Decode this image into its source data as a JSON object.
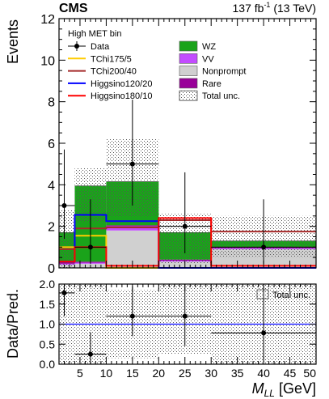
{
  "chart_data": [
    {
      "type": "bar",
      "stacked": true,
      "experiment": "CMS",
      "lumi_label": "137 fb",
      "lumi_sup": "-1",
      "lumi_energy": " (13 TeV)",
      "title": "High MET bin",
      "ylabel": "Events",
      "xlim": [
        1,
        50
      ],
      "ylim": [
        0,
        12
      ],
      "yticks": [
        0,
        2,
        4,
        6,
        8,
        10,
        12
      ],
      "bins": [
        [
          1,
          4
        ],
        [
          4,
          10
        ],
        [
          10,
          20
        ],
        [
          20,
          30
        ],
        [
          30,
          50
        ]
      ],
      "stack": [
        {
          "name": "Nonprompt",
          "color": "#d0d0d0",
          "values": [
            0.15,
            0.2,
            1.8,
            0.3,
            0.9
          ]
        },
        {
          "name": "VV",
          "color": "#c34cff",
          "values": [
            0.05,
            0.05,
            0.2,
            0.05,
            0.05
          ]
        },
        {
          "name": "Rare",
          "color": "#990099",
          "values": [
            0.1,
            0.05,
            0.05,
            0.05,
            0.05
          ]
        },
        {
          "name": "WZ",
          "color": "#1aa31a",
          "values": [
            1.4,
            3.65,
            2.1,
            1.3,
            0.3
          ]
        }
      ],
      "total_unc": {
        "name": "Total unc.",
        "down": [
          0.0,
          2.2,
          2.5,
          0.2,
          0.5
        ],
        "up": [
          2.8,
          4.8,
          6.2,
          2.6,
          2.5
        ]
      },
      "signals": [
        {
          "name": "TChi175/5",
          "color": "#ffcc00",
          "values": [
            1.0,
            1.55,
            0,
            0,
            0
          ]
        },
        {
          "name": "TChi200/40",
          "color": "#a52a2a",
          "values": [
            0.9,
            1.9,
            1.95,
            2.3,
            1.75
          ]
        },
        {
          "name": "Higgsino120/20",
          "color": "#0000ff",
          "values": [
            0.3,
            2.55,
            2.25,
            0,
            0
          ]
        },
        {
          "name": "Higgsino180/10",
          "color": "#ff0000",
          "values": [
            0.3,
            1.0,
            0.1,
            2.4,
            0.1
          ]
        }
      ],
      "data": {
        "name": "Data",
        "points": [
          {
            "x": 2,
            "xlo": 1,
            "xhi": 4,
            "y": 3,
            "ylo": 1.4,
            "yhi": 5.7
          },
          {
            "x": 7,
            "xlo": 4,
            "xhi": 10,
            "y": 1,
            "ylo": 0.2,
            "yhi": 3.3
          },
          {
            "x": 15,
            "xlo": 10,
            "xhi": 20,
            "y": 5,
            "ylo": 3.0,
            "yhi": 8.1
          },
          {
            "x": 25,
            "xlo": 20,
            "xhi": 30,
            "y": 2,
            "ylo": 0.7,
            "yhi": 4.6
          },
          {
            "x": 40,
            "xlo": 30,
            "xhi": 50,
            "y": 1,
            "ylo": 0.2,
            "yhi": 3.3
          }
        ]
      },
      "legend_left": [
        "Data",
        "TChi175/5",
        "TChi200/40",
        "Higgsino120/20",
        "Higgsino180/10"
      ],
      "legend_right": [
        "WZ",
        "VV",
        "Nonprompt",
        "Rare",
        "Total unc."
      ]
    },
    {
      "type": "scatter",
      "ylabel": "Data/Pred.",
      "xlabel_main": "M",
      "xlabel_sub": "LL",
      "xlabel_unit": " [GeV]",
      "xlim": [
        1,
        50
      ],
      "ylim": [
        0,
        2
      ],
      "yticks": [
        "0.0",
        "0.5",
        "1.0",
        "1.5",
        "2.0"
      ],
      "xticks": [
        5,
        10,
        15,
        20,
        25,
        30,
        35,
        40,
        45,
        50
      ],
      "reference_line": 1.0,
      "legend": "Total unc.",
      "unc_band": [
        [
          0.0,
          2.0
        ],
        [
          0.0,
          2.0
        ],
        [
          0.15,
          1.85
        ],
        [
          0.25,
          2.0
        ],
        [
          0.0,
          2.0
        ]
      ],
      "ratio": [
        {
          "x": 2,
          "xlo": 1,
          "xhi": 4,
          "y": 1.78,
          "ylo": 1.2,
          "yhi": 2.0
        },
        {
          "x": 7,
          "xlo": 4,
          "xhi": 10,
          "y": 0.25,
          "ylo": 0.0,
          "yhi": 0.8
        },
        {
          "x": 15,
          "xlo": 10,
          "xhi": 20,
          "y": 1.2,
          "ylo": 0.7,
          "yhi": 1.95
        },
        {
          "x": 25,
          "xlo": 20,
          "xhi": 30,
          "y": 1.2,
          "ylo": 0.45,
          "yhi": 2.0
        },
        {
          "x": 40,
          "xlo": 30,
          "xhi": 50,
          "y": 0.78,
          "ylo": 0.15,
          "yhi": 2.0
        }
      ]
    }
  ]
}
